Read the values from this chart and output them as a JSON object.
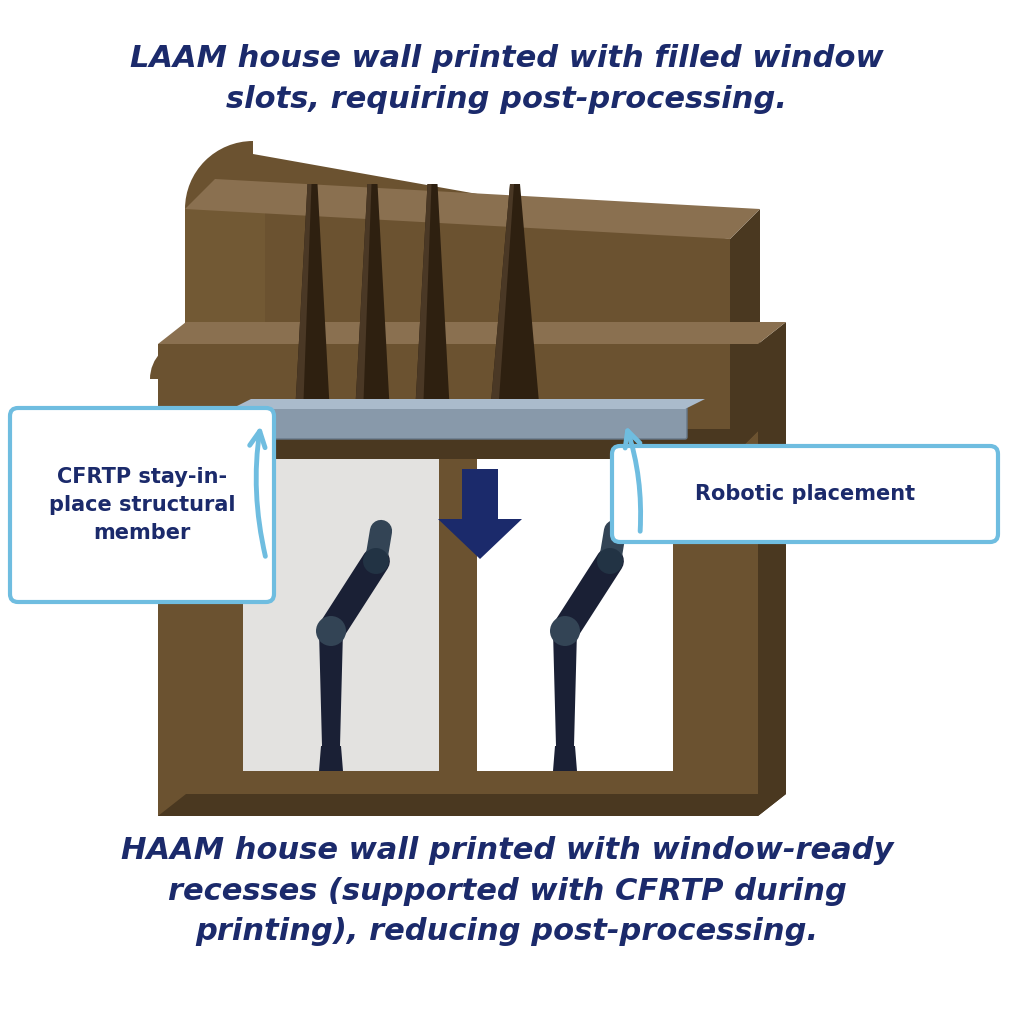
{
  "bg_color": "#ffffff",
  "dark_navy": "#1b2a6b",
  "light_blue": "#6fbde0",
  "wall_color": "#6b5230",
  "wall_dark": "#3d2e18",
  "wall_light": "#8a7050",
  "wall_side": "#4a3820",
  "steel_color": "#8899aa",
  "steel_top": "#aabbcc",
  "robot_color": "#1a2035",
  "arrow_color": "#1b2a6b",
  "slot_color": "#2e2010",
  "title_top": "LAAM house wall printed with filled window\nslots, requiring post-processing.",
  "title_bottom": "HAAM house wall printed with window-ready\nrecesses (supported with CFRTP during\nprinting), reducing post-processing.",
  "label_cfrtp": "CFRTP stay-in-\nplace structural\nmember",
  "label_robotic": "Robotic placement"
}
